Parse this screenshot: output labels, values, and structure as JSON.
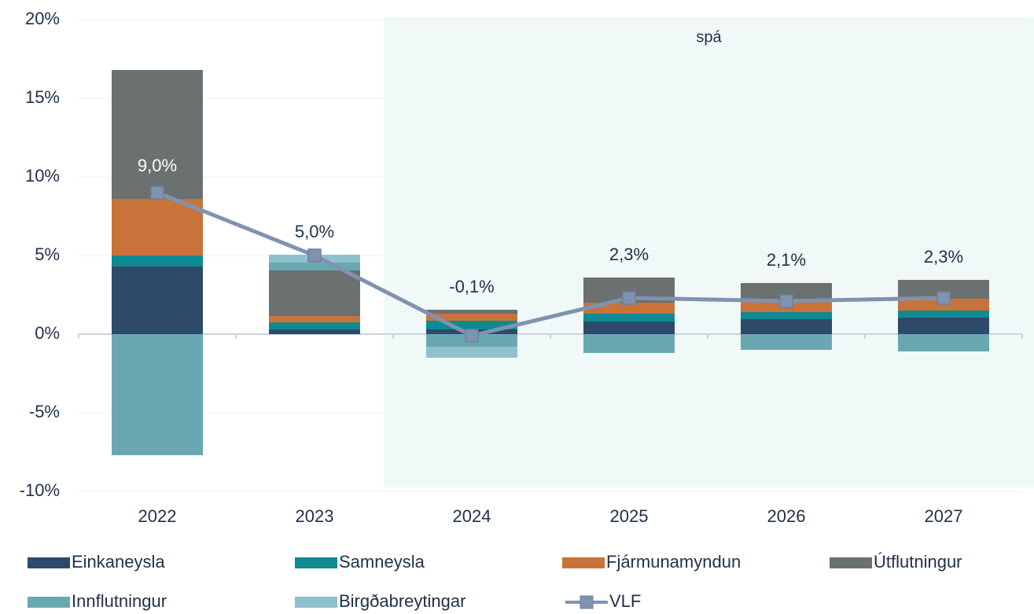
{
  "chart_data": {
    "type": "bar",
    "categories": [
      "2022",
      "2023",
      "2024",
      "2025",
      "2026",
      "2027"
    ],
    "annotation": {
      "text": "spá",
      "from": "2024"
    },
    "ylim": [
      -10,
      20
    ],
    "yticks": [
      {
        "value": -10,
        "label": "-10%"
      },
      {
        "value": -5,
        "label": "-5%"
      },
      {
        "value": 0,
        "label": "0%"
      },
      {
        "value": 5,
        "label": "5%"
      },
      {
        "value": 10,
        "label": "10%"
      },
      {
        "value": 15,
        "label": "15%"
      },
      {
        "value": 20,
        "label": "20%"
      }
    ],
    "grid": true,
    "legend": "bottom",
    "series": [
      {
        "name": "Einkaneysla",
        "color": "#2d4a6b",
        "values": [
          4.3,
          0.3,
          0.3,
          0.8,
          0.95,
          1.05
        ]
      },
      {
        "name": "Samneysla",
        "color": "#0f8a92",
        "values": [
          0.7,
          0.45,
          0.55,
          0.5,
          0.45,
          0.45
        ]
      },
      {
        "name": "Fjármunamyndun",
        "color": "#c8733a",
        "values": [
          3.6,
          0.4,
          0.45,
          0.7,
          0.7,
          0.75
        ]
      },
      {
        "name": "Útflutningur",
        "color": "#6b7070",
        "values": [
          8.2,
          2.9,
          0.25,
          1.6,
          1.15,
          1.2
        ]
      },
      {
        "name": "Innflutningur",
        "color": "#6aa8b1",
        "values": [
          -7.7,
          0.5,
          -0.8,
          -1.2,
          -1.0,
          -1.1
        ]
      },
      {
        "name": "Birgðabreytingar",
        "color": "#8fc0cb",
        "values": [
          0,
          0.5,
          -0.7,
          0,
          0,
          0
        ]
      },
      {
        "name": "VLF",
        "type": "line",
        "color": "#7f93b0",
        "values": [
          9.0,
          5.0,
          -0.1,
          2.3,
          2.1,
          2.3
        ],
        "value_labels": [
          "9,0%",
          "5,0%",
          "-0,1%",
          "2,3%",
          "2,1%",
          "2,3%"
        ]
      }
    ]
  }
}
